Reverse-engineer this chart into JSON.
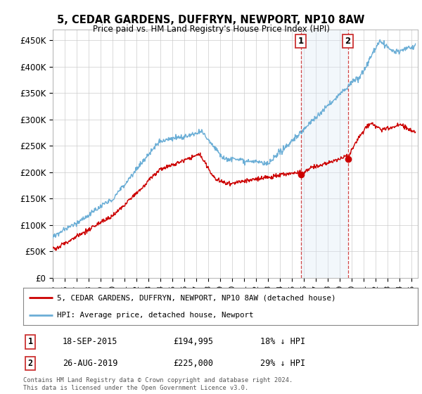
{
  "title": "5, CEDAR GARDENS, DUFFRYN, NEWPORT, NP10 8AW",
  "subtitle": "Price paid vs. HM Land Registry's House Price Index (HPI)",
  "ylabel_ticks": [
    "£0",
    "£50K",
    "£100K",
    "£150K",
    "£200K",
    "£250K",
    "£300K",
    "£350K",
    "£400K",
    "£450K"
  ],
  "ylim": [
    0,
    470000
  ],
  "xlim_start": 1995.0,
  "xlim_end": 2025.5,
  "sale1_date": 2015.72,
  "sale1_price": 194995,
  "sale1_label": "1",
  "sale2_date": 2019.66,
  "sale2_price": 225000,
  "sale2_label": "2",
  "hpi_color": "#6baed6",
  "price_color": "#cc0000",
  "sale_marker_color": "#cc0000",
  "shaded_color": "#dce9f5",
  "grid_color": "#cccccc",
  "legend1_text": "5, CEDAR GARDENS, DUFFRYN, NEWPORT, NP10 8AW (detached house)",
  "legend2_text": "HPI: Average price, detached house, Newport",
  "footer": "Contains HM Land Registry data © Crown copyright and database right 2024.\nThis data is licensed under the Open Government Licence v3.0.",
  "background_color": "#ffffff"
}
